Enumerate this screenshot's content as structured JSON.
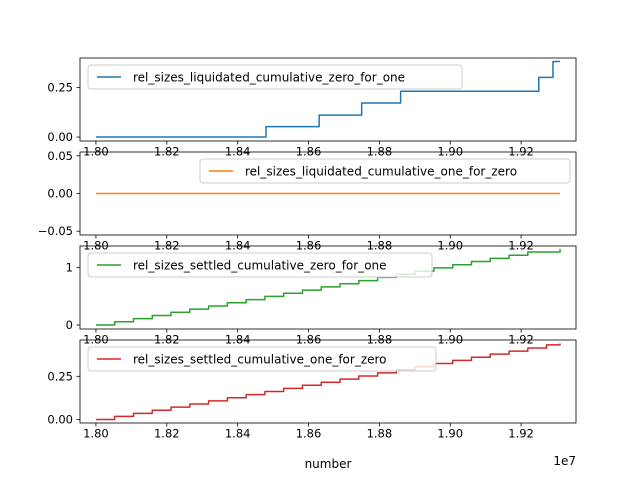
{
  "figure": {
    "xlabel": "number",
    "offset_text": "1e7"
  },
  "chart_data": [
    {
      "type": "line",
      "step": "post",
      "title": "",
      "xlabel": "",
      "ylabel": "",
      "x_scale": "1e7",
      "xlim": [
        1.7955,
        1.9355
      ],
      "ylim": [
        -0.02,
        0.4
      ],
      "xticks": [
        1.8,
        1.82,
        1.84,
        1.86,
        1.88,
        1.9,
        1.92
      ],
      "xtick_labels": [
        "1.80",
        "1.82",
        "1.84",
        "1.86",
        "1.88",
        "1.90",
        "1.92"
      ],
      "yticks": [
        0.0,
        0.25
      ],
      "ytick_labels": [
        "0.00",
        "0.25"
      ],
      "grid": false,
      "legend_position": "upper-left",
      "series": [
        {
          "name": "rel_sizes_liquidated_cumulative_zero_for_one",
          "color": "#1f77b4",
          "x": [
            1.8,
            1.848,
            1.863,
            1.875,
            1.886,
            1.925,
            1.929,
            1.931
          ],
          "y": [
            0.0,
            0.053,
            0.111,
            0.172,
            0.232,
            0.302,
            0.382,
            0.382
          ]
        }
      ]
    },
    {
      "type": "line",
      "title": "",
      "xlabel": "",
      "ylabel": "",
      "x_scale": "1e7",
      "xlim": [
        1.7955,
        1.9355
      ],
      "ylim": [
        -0.055,
        0.055
      ],
      "xticks": [
        1.8,
        1.82,
        1.84,
        1.86,
        1.88,
        1.9,
        1.92
      ],
      "xtick_labels": [
        "1.80",
        "1.82",
        "1.84",
        "1.86",
        "1.88",
        "1.90",
        "1.92"
      ],
      "yticks": [
        -0.05,
        0.0,
        0.05
      ],
      "ytick_labels": [
        "−0.05",
        "0.00",
        "0.05"
      ],
      "grid": false,
      "legend_position": "upper-right",
      "series": [
        {
          "name": "rel_sizes_liquidated_cumulative_one_for_zero",
          "color": "#ff7f0e",
          "x": [
            1.8,
            1.931
          ],
          "y": [
            0.0,
            0.0
          ]
        }
      ]
    },
    {
      "type": "line",
      "step": "post",
      "title": "",
      "xlabel": "",
      "ylabel": "",
      "x_scale": "1e7",
      "xlim": [
        1.7955,
        1.9355
      ],
      "ylim": [
        -0.07,
        1.37
      ],
      "xticks": [
        1.8,
        1.82,
        1.84,
        1.86,
        1.88,
        1.9,
        1.92
      ],
      "xtick_labels": [
        "1.80",
        "1.82",
        "1.84",
        "1.86",
        "1.88",
        "1.90",
        "1.92"
      ],
      "yticks": [
        0,
        1
      ],
      "ytick_labels": [
        "0",
        "1"
      ],
      "grid": false,
      "legend_position": "upper-left",
      "series": [
        {
          "name": "rel_sizes_settled_cumulative_zero_for_one",
          "color": "#2ca02c",
          "x": [
            1.8,
            1.8053,
            1.8106,
            1.8159,
            1.8212,
            1.8265,
            1.8318,
            1.8371,
            1.8424,
            1.8477,
            1.853,
            1.8583,
            1.8636,
            1.8689,
            1.8742,
            1.8795,
            1.8848,
            1.8901,
            1.8954,
            1.9007,
            1.906,
            1.9113,
            1.9166,
            1.9219,
            1.931
          ],
          "y": [
            0.0,
            0.055,
            0.11,
            0.165,
            0.22,
            0.275,
            0.33,
            0.385,
            0.44,
            0.495,
            0.55,
            0.605,
            0.66,
            0.715,
            0.77,
            0.825,
            0.88,
            0.935,
            0.99,
            1.045,
            1.1,
            1.155,
            1.21,
            1.265,
            1.32
          ]
        }
      ]
    },
    {
      "type": "line",
      "step": "post",
      "title": "",
      "xlabel": "number",
      "ylabel": "",
      "x_scale": "1e7",
      "xlim": [
        1.7955,
        1.9355
      ],
      "ylim": [
        -0.02,
        0.46
      ],
      "xticks": [
        1.8,
        1.82,
        1.84,
        1.86,
        1.88,
        1.9,
        1.92
      ],
      "xtick_labels": [
        "1.80",
        "1.82",
        "1.84",
        "1.86",
        "1.88",
        "1.90",
        "1.92"
      ],
      "yticks": [
        0.0,
        0.25
      ],
      "ytick_labels": [
        "0.00",
        "0.25"
      ],
      "grid": false,
      "legend_position": "upper-left",
      "series": [
        {
          "name": "rel_sizes_settled_cumulative_one_for_zero",
          "color": "#d62728",
          "x": [
            1.8,
            1.8053,
            1.8106,
            1.8159,
            1.8212,
            1.8265,
            1.8318,
            1.8371,
            1.8424,
            1.8477,
            1.853,
            1.8583,
            1.8636,
            1.8689,
            1.8742,
            1.8795,
            1.8848,
            1.8901,
            1.8954,
            1.9007,
            1.906,
            1.9113,
            1.9166,
            1.9219,
            1.9272,
            1.931
          ],
          "y": [
            0.0,
            0.018,
            0.036,
            0.054,
            0.072,
            0.09,
            0.108,
            0.126,
            0.144,
            0.162,
            0.18,
            0.198,
            0.216,
            0.234,
            0.252,
            0.27,
            0.288,
            0.306,
            0.324,
            0.342,
            0.36,
            0.378,
            0.396,
            0.414,
            0.432,
            0.44
          ]
        }
      ]
    }
  ]
}
